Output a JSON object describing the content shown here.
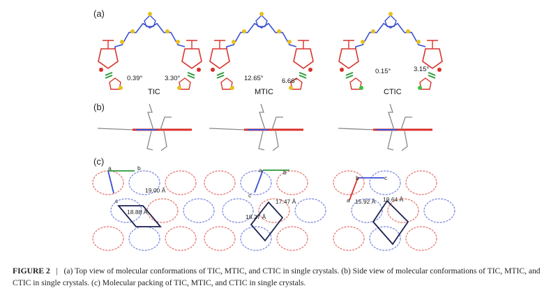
{
  "figure": {
    "panels": {
      "a": "(a)",
      "b": "(b)",
      "c": "(c)"
    },
    "molecules": [
      {
        "name": "TIC",
        "angle_left": "0.39°",
        "angle_right": "3.30°",
        "cell_lengths": [
          "19.00 Å",
          "18.88 Å"
        ],
        "axes": {
          "origin": "a",
          "horizontal": "b",
          "vertical": "c"
        }
      },
      {
        "name": "MTIC",
        "angle_left": "12.65°",
        "angle_right": "6.66°",
        "cell_lengths": [
          "17.47 Å",
          "18.27 Å"
        ],
        "axes": {
          "origin": "a",
          "horizontal": "b",
          "vertical": "c"
        }
      },
      {
        "name": "CTIC",
        "angle_left": "0.15°",
        "angle_right": "3.15°",
        "cell_lengths": [
          "19.64 Å",
          "15.92 Å"
        ],
        "axes": {
          "origin": "b",
          "horizontal": "c",
          "vertical": "a"
        }
      }
    ],
    "colors": {
      "core": "#3a4fd0",
      "end_group": "#d8322a",
      "sulfur": "#e8c020",
      "chlorine": "#40c040",
      "plane_marker": "#2a9a3a",
      "cell": "#1c2050"
    }
  },
  "caption": {
    "label": "FIGURE 2",
    "separator": "|",
    "text": "(a) Top view of molecular conformations of TIC, MTIC, and CTIC in single crystals. (b) Side view of molecular conformations of TIC, MTIC, and CTIC in single crystals. (c) Molecular packing of TIC, MTIC, and CTIC in single crystals."
  }
}
